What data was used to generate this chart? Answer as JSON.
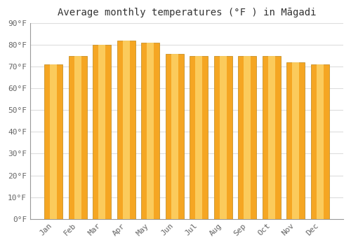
{
  "title": "Average monthly temperatures (°F ) in Māgadi",
  "months": [
    "Jan",
    "Feb",
    "Mar",
    "Apr",
    "May",
    "Jun",
    "Jul",
    "Aug",
    "Sep",
    "Oct",
    "Nov",
    "Dec"
  ],
  "values": [
    71,
    75,
    80,
    82,
    81,
    76,
    75,
    75,
    75,
    75,
    72,
    71
  ],
  "bar_color_outer": "#F5A623",
  "bar_color_inner": "#FDD267",
  "bar_color_edge": "#C8922A",
  "ylim": [
    0,
    90
  ],
  "yticks": [
    0,
    10,
    20,
    30,
    40,
    50,
    60,
    70,
    80,
    90
  ],
  "ytick_labels": [
    "0°F",
    "10°F",
    "20°F",
    "30°F",
    "40°F",
    "50°F",
    "60°F",
    "70°F",
    "80°F",
    "90°F"
  ],
  "background_color": "#ffffff",
  "grid_color": "#dddddd",
  "title_fontsize": 10,
  "tick_fontsize": 8,
  "bar_width": 0.75
}
